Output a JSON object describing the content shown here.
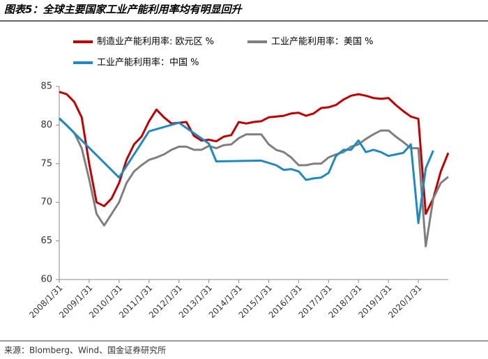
{
  "chart_data": {
    "type": "line",
    "title": "图表5：全球主要国家工业产能利用率均有明显回升",
    "source": "来源：Blomberg、Wind、国金证券研究所",
    "legend": "top",
    "x": [
      "2008/1/31",
      "2008/4/30",
      "2008/7/31",
      "2008/10/31",
      "2009/1/31",
      "2009/4/30",
      "2009/7/31",
      "2009/10/31",
      "2010/1/31",
      "2010/4/30",
      "2010/7/31",
      "2010/10/31",
      "2011/1/31",
      "2011/4/30",
      "2011/7/31",
      "2011/10/31",
      "2012/1/31",
      "2012/4/30",
      "2012/7/31",
      "2012/10/31",
      "2013/1/31",
      "2013/4/30",
      "2013/7/31",
      "2013/10/31",
      "2014/1/31",
      "2014/4/30",
      "2014/7/31",
      "2014/10/31",
      "2015/1/31",
      "2015/4/30",
      "2015/7/31",
      "2015/10/31",
      "2016/1/31",
      "2016/4/30",
      "2016/7/31",
      "2016/10/31",
      "2017/1/31",
      "2017/4/30",
      "2017/7/31",
      "2017/10/31",
      "2018/1/31",
      "2018/4/30",
      "2018/7/31",
      "2018/10/31",
      "2019/1/31",
      "2019/4/30",
      "2019/7/31",
      "2019/10/31",
      "2020/1/31",
      "2020/4/30",
      "2020/7/31",
      "2020/10/31",
      "2021/1/31"
    ],
    "series": [
      {
        "name": "制造业产能利用率: 欧元区 %",
        "color": "#c00000",
        "values": [
          84.3,
          84.0,
          83.0,
          81.0,
          75.0,
          70.0,
          69.5,
          70.5,
          72.5,
          75.5,
          77.5,
          78.5,
          80.5,
          82.0,
          81.0,
          80.2,
          80.3,
          80.4,
          78.6,
          78.0,
          78.1,
          77.9,
          78.5,
          78.7,
          80.4,
          80.2,
          80.4,
          80.5,
          81.0,
          81.1,
          81.2,
          81.5,
          81.6,
          81.2,
          81.5,
          82.2,
          82.3,
          82.6,
          83.3,
          83.8,
          84.0,
          83.8,
          83.5,
          83.4,
          83.5,
          82.6,
          81.8,
          81.1,
          80.8,
          68.5,
          70.5,
          74.0,
          76.4
        ]
      },
      {
        "name": "工业产能利用率：美国 %",
        "color": "#7f7f7f",
        "values": [
          80.8,
          80.0,
          79.0,
          77.0,
          73.0,
          68.5,
          67.0,
          68.5,
          70.0,
          72.5,
          74.0,
          74.8,
          75.5,
          75.8,
          76.2,
          76.8,
          77.2,
          77.2,
          76.8,
          76.8,
          77.3,
          77.0,
          77.4,
          77.5,
          78.3,
          78.8,
          78.8,
          78.8,
          77.5,
          76.8,
          76.5,
          75.8,
          74.8,
          74.8,
          75.0,
          75.0,
          75.8,
          76.2,
          76.5,
          77.2,
          77.5,
          78.2,
          78.8,
          79.3,
          79.3,
          78.5,
          77.8,
          77.0,
          77.0,
          64.3,
          70.5,
          72.5,
          73.3
        ]
      },
      {
        "name": "工业产能利用率：中国 %",
        "color": "#1f8ac0",
        "x": [
          "2008/1/31",
          "2010/1/31",
          "2011/1/31",
          "2012/1/31",
          "2013/1/31",
          "2013/4/30",
          "2014/10/31",
          "2015/4/30",
          "2015/7/31",
          "2015/10/31",
          "2016/1/31",
          "2016/4/30",
          "2016/7/31",
          "2016/10/31",
          "2017/1/31",
          "2017/4/30",
          "2017/7/31",
          "2017/10/31",
          "2018/1/31",
          "2018/4/30",
          "2018/7/31",
          "2018/10/31",
          "2019/1/31",
          "2019/4/30",
          "2019/7/31",
          "2019/10/31",
          "2020/1/31",
          "2020/4/30",
          "2020/7/31"
        ],
        "values": [
          80.9,
          73.2,
          79.2,
          80.3,
          77.6,
          75.3,
          75.4,
          74.8,
          74.2,
          74.3,
          74.0,
          72.9,
          73.1,
          73.2,
          73.8,
          76.0,
          76.8,
          76.8,
          78.0,
          76.5,
          76.8,
          76.5,
          76.0,
          76.2,
          76.4,
          77.5,
          67.3,
          74.4,
          76.7
        ]
      }
    ],
    "xlim": [
      "2008/1/31",
      "2021/1/31"
    ],
    "xticks": [
      "2008/1/31",
      "2009/1/31",
      "2010/1/31",
      "2011/1/31",
      "2012/1/31",
      "2013/1/31",
      "2014/1/31",
      "2015/1/31",
      "2016/1/31",
      "2017/1/31",
      "2018/1/31",
      "2019/1/31",
      "2020/1/31"
    ],
    "ylim": [
      60,
      85
    ],
    "yticks": [
      60,
      65,
      70,
      75,
      80,
      85
    ]
  }
}
